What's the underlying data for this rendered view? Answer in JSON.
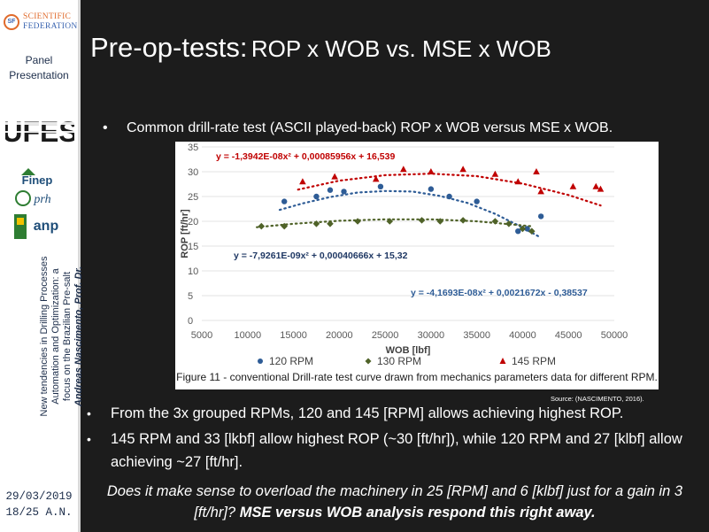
{
  "sidebar": {
    "logo_line1": "SCIENTIFIC",
    "logo_line2": "FEDERATION",
    "logo_mark": "SF",
    "panel_line1": "Panel",
    "panel_line2": "Presentation",
    "ufes_text": "UFES",
    "finep_text": "Finep",
    "prh_text": "prh",
    "anp_text": "anp",
    "vertical_line1": "New tendencies in Drilling Processes",
    "vertical_line2": "Automation and Optimization: a",
    "vertical_line3": "focus on the Brazilian Pre-salt",
    "vertical_author": "Andreas Nascimento, Prof. Dr.",
    "date": "29/03/2019",
    "slide_number": "18/25 A.N."
  },
  "slide": {
    "title_main": "Pre-op-tests:",
    "title_sub": "ROP x WOB vs. MSE x WOB",
    "bullet_char": "•",
    "bullet1": "Common drill-rate test (ASCII played-back) ROP x WOB versus MSE x WOB.",
    "source": "Source: (NASCIMENTO, 2016).",
    "bullet2": "From the 3x grouped RPMs, 120 and 145 [RPM] allows achieving highest ROP.",
    "bullet3": "145 RPM and 33 [lkbf] allow highest ROP (~30 [ft/hr]), while 120 RPM and  27 [klbf] allow achieving ~27 [ft/hr].",
    "question_part1": "Does it make sense to overload the machinery in 25 [RPM] and 6 [klbf] just for a gain in 3 [ft/hr]?",
    "question_part2": "MSE versus WOB analysis respond this right away."
  },
  "chart_data": {
    "type": "scatter",
    "xlabel": "WOB [lbf]",
    "ylabel": "ROP  [ft/hr]",
    "xlim": [
      5000,
      50000
    ],
    "ylim": [
      0,
      35
    ],
    "xticks": [
      5000,
      10000,
      15000,
      20000,
      25000,
      30000,
      35000,
      40000,
      45000,
      50000
    ],
    "yticks": [
      0,
      5,
      10,
      15,
      20,
      25,
      30,
      35
    ],
    "caption": "Figure 11 - conventional Drill-rate test curve drawn from mechanics parameters data for different RPM.",
    "series": [
      {
        "name": "120 RPM",
        "color": "#2e5c96",
        "marker": "circle",
        "equation": "y = -4,1693E-08x² + 0,0021672x - 0,38537",
        "equation_color": "#2e5c96",
        "points": [
          [
            14000,
            24
          ],
          [
            17500,
            25
          ],
          [
            19000,
            26.3
          ],
          [
            20500,
            26
          ],
          [
            24500,
            27
          ],
          [
            30000,
            26.5
          ],
          [
            32000,
            25
          ],
          [
            35000,
            24
          ],
          [
            39500,
            18
          ],
          [
            40500,
            18.5
          ],
          [
            42000,
            21
          ]
        ],
        "trend": [
          [
            13500,
            22.3
          ],
          [
            16000,
            23.6
          ],
          [
            19000,
            24.9
          ],
          [
            22000,
            25.8
          ],
          [
            25000,
            26.1
          ],
          [
            28000,
            26.0
          ],
          [
            31000,
            25.1
          ],
          [
            34000,
            23.7
          ],
          [
            37000,
            21.5
          ],
          [
            39500,
            19.2
          ],
          [
            42000,
            16.7
          ]
        ]
      },
      {
        "name": "130 RPM",
        "color": "#4f6228",
        "marker": "diamond",
        "equation": "y = -7,9261E-09x² + 0,00040666x + 15,32",
        "equation_color": "#1f3864",
        "points": [
          [
            11500,
            19
          ],
          [
            14000,
            19
          ],
          [
            17500,
            19.5
          ],
          [
            19000,
            19.5
          ],
          [
            22000,
            20
          ],
          [
            25500,
            20
          ],
          [
            29000,
            20.2
          ],
          [
            31000,
            20
          ],
          [
            33500,
            20.2
          ],
          [
            37000,
            20
          ],
          [
            38500,
            19.5
          ],
          [
            40000,
            18.5
          ],
          [
            41000,
            18
          ]
        ],
        "trend": [
          [
            11000,
            18.8
          ],
          [
            15000,
            19.5
          ],
          [
            20000,
            20.1
          ],
          [
            25000,
            20.4
          ],
          [
            30000,
            20.4
          ],
          [
            35000,
            20.0
          ],
          [
            41000,
            19.0
          ]
        ]
      },
      {
        "name": "145 RPM",
        "color": "#c00000",
        "marker": "triangle",
        "equation": "y = -1,3942E-08x² + 0,00085956x + 16,539",
        "equation_color": "#c00000",
        "points": [
          [
            16000,
            28
          ],
          [
            19500,
            29
          ],
          [
            24000,
            28.5
          ],
          [
            27000,
            30.5
          ],
          [
            30000,
            30
          ],
          [
            33500,
            30.5
          ],
          [
            37000,
            29.5
          ],
          [
            39500,
            28
          ],
          [
            41500,
            30
          ],
          [
            42000,
            26
          ],
          [
            45500,
            27
          ],
          [
            48000,
            27
          ],
          [
            48500,
            26.5
          ]
        ],
        "trend": [
          [
            15500,
            26.4
          ],
          [
            20000,
            28.2
          ],
          [
            25000,
            29.3
          ],
          [
            30000,
            29.6
          ],
          [
            35000,
            29.1
          ],
          [
            40000,
            27.6
          ],
          [
            45000,
            25.3
          ],
          [
            48500,
            23.2
          ]
        ]
      }
    ]
  }
}
